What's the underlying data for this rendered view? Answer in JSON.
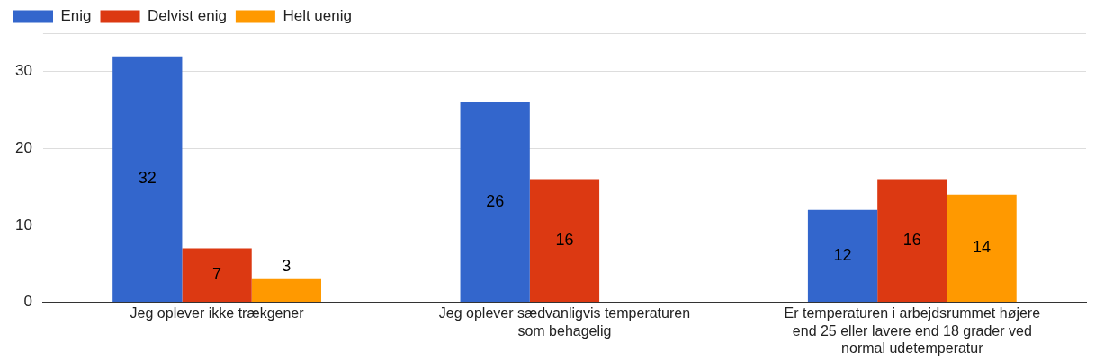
{
  "chart_data": {
    "type": "bar",
    "categories": [
      "Jeg oplever ikke trækgener",
      "Jeg oplever sædvanligvis temperaturen som behagelig",
      "Er temperaturen i arbejdsrummet højere end 25 eller lavere end 18 grader ved normal udetemperatur"
    ],
    "series": [
      {
        "name": "Enig",
        "color": "#3366cc",
        "values": [
          32,
          26,
          12
        ]
      },
      {
        "name": "Delvist enig",
        "color": "#dc3912",
        "values": [
          7,
          16,
          16
        ]
      },
      {
        "name": "Helt uenig",
        "color": "#ff9900",
        "values": [
          3,
          null,
          14
        ]
      }
    ],
    "ylim": [
      0,
      35
    ],
    "yticks": [
      0,
      10,
      20,
      30
    ],
    "grid": "y",
    "legend": "top left",
    "data_labels": true
  }
}
